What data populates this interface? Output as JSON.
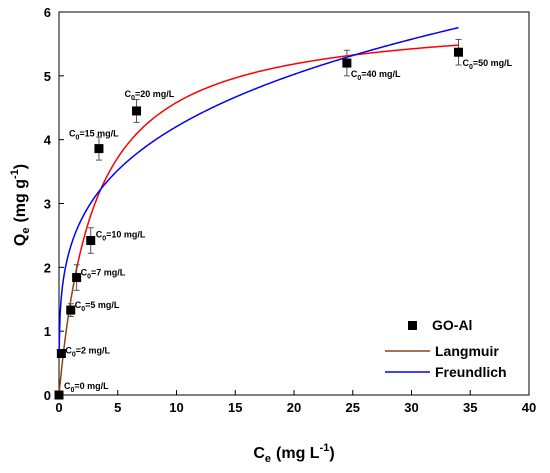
{
  "chart_data": {
    "type": "scatter",
    "xlabel": {
      "main": "C",
      "sub": "e",
      "units": "(mg L",
      "sup": "-1",
      "close": ")"
    },
    "ylabel": {
      "main": "Q",
      "sub": "e",
      "units": "(mg g",
      "sup": "-1",
      "close": ")"
    },
    "xlim": [
      0,
      40
    ],
    "ylim": [
      0,
      6
    ],
    "xticks": [
      "0",
      "5",
      "10",
      "15",
      "20",
      "25",
      "30",
      "35",
      "40"
    ],
    "yticks": [
      "0",
      "1",
      "2",
      "3",
      "4",
      "5",
      "6"
    ],
    "grid": false,
    "legend_position": "bottom-right",
    "series": [
      {
        "name": "GO-Al",
        "kind": "points",
        "color": "#000000",
        "points": [
          {
            "x": 0.0,
            "y": 0.0,
            "err": 0.0,
            "label_prefix": "C",
            "label_sub": "0",
            "label_rest": "=0 mg/L"
          },
          {
            "x": 0.2,
            "y": 0.65,
            "err": 0.0,
            "label_prefix": "C",
            "label_sub": "0",
            "label_rest": "=2 mg/L"
          },
          {
            "x": 1.0,
            "y": 1.33,
            "err": 0.1,
            "label_prefix": "C",
            "label_sub": "0",
            "label_rest": "=5 mg/L"
          },
          {
            "x": 1.5,
            "y": 1.84,
            "err": 0.2,
            "label_prefix": "C",
            "label_sub": "0",
            "label_rest": "=7 mg/L"
          },
          {
            "x": 2.7,
            "y": 2.42,
            "err": 0.2,
            "label_prefix": "C",
            "label_sub": "0",
            "label_rest": "=10 mg/L"
          },
          {
            "x": 3.4,
            "y": 3.86,
            "err": 0.18,
            "label_prefix": "C",
            "label_sub": "0",
            "label_rest": "=15 mg/L"
          },
          {
            "x": 6.6,
            "y": 4.45,
            "err": 0.18,
            "label_prefix": "C",
            "label_sub": "0",
            "label_rest": "=20 mg/L"
          },
          {
            "x": 24.5,
            "y": 5.2,
            "err": 0.2,
            "label_prefix": "C",
            "label_sub": "0",
            "label_rest": "=40 mg/L"
          },
          {
            "x": 34.0,
            "y": 5.37,
            "err": 0.2,
            "label_prefix": "C",
            "label_sub": "0",
            "label_rest": "=50 mg/L"
          }
        ]
      },
      {
        "name": "Langmuir",
        "kind": "line",
        "color": "#8B4513",
        "curve_color": "#ff0000",
        "model": {
          "qm": 5.97,
          "KL": 0.33
        }
      },
      {
        "name": "Freundlich",
        "kind": "line",
        "color": "#0000ff",
        "model": {
          "KF": 2.33,
          "n": 3.9
        }
      }
    ]
  }
}
